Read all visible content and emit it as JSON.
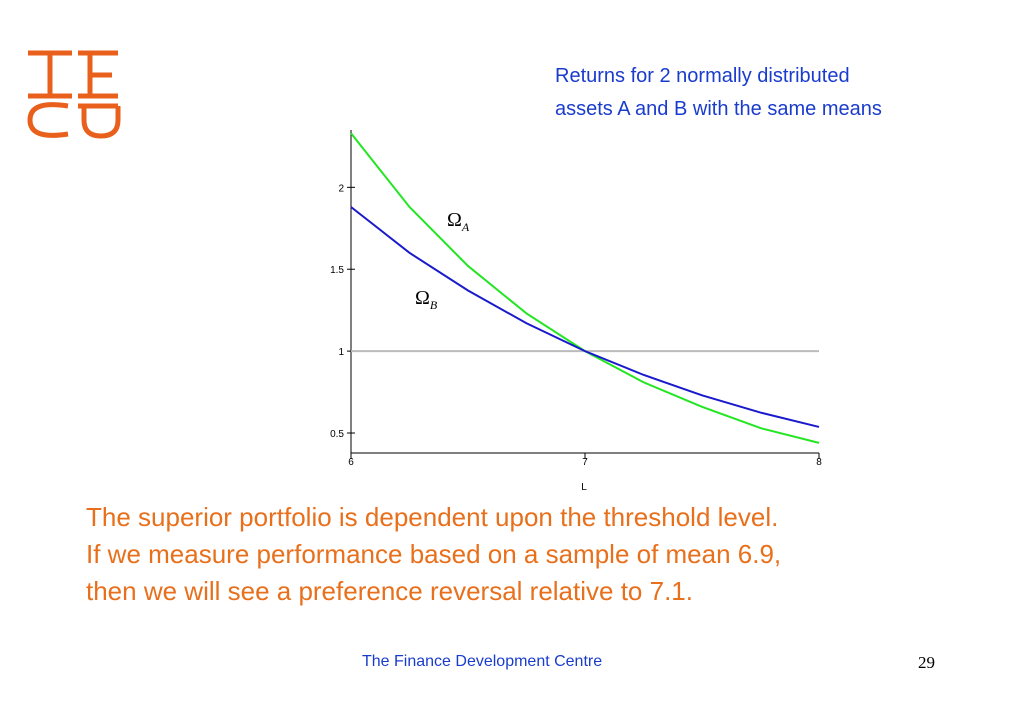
{
  "chart_data": {
    "type": "line",
    "title": [
      "Returns for  2 normally distributed",
      "assets A and B with the same means"
    ],
    "x_label": "L",
    "x": [
      6,
      6.25,
      6.5,
      6.75,
      7,
      7.25,
      7.5,
      7.75,
      8
    ],
    "series": [
      {
        "name": "ΩA",
        "color": "#22e622",
        "values": [
          2.33,
          1.88,
          1.52,
          1.23,
          1.0,
          0.81,
          0.66,
          0.53,
          0.44
        ]
      },
      {
        "name": "ΩB",
        "color": "#1a1acc",
        "values": [
          1.88,
          1.6,
          1.37,
          1.17,
          1.0,
          0.855,
          0.73,
          0.625,
          0.537
        ]
      }
    ],
    "hline": 1,
    "hline_color": "#bbbbbb",
    "xlim": [
      6,
      8
    ],
    "xticks": [
      6,
      7,
      8
    ],
    "ylim": [
      0.378,
      2.35
    ],
    "yticks": [
      0.5,
      1,
      1.5,
      2
    ]
  },
  "caption": [
    "The superior portfolio is dependent upon the threshold level.",
    "If we measure performance based on a sample of mean 6.9,",
    "then we will see a preference reversal relative to 7.1."
  ],
  "footer": "The Finance Development Centre",
  "page_number": "29"
}
